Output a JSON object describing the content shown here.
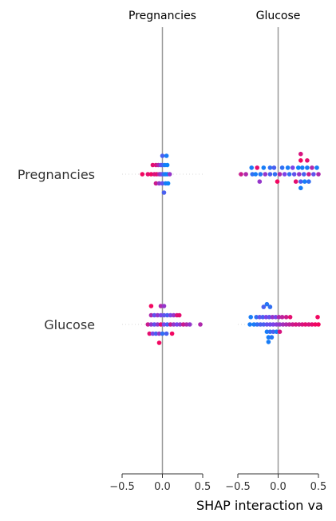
{
  "chart_data": {
    "type": "scatter",
    "title": "",
    "xlabel": "SHAP interaction va",
    "ylabel": "",
    "xlim": [
      -0.5,
      0.5
    ],
    "x_ticks": [
      -0.5,
      0.0,
      0.5
    ],
    "x_tick_labels": [
      "−0.5",
      "0.0",
      "0.5"
    ],
    "columns": [
      "Pregnancies",
      "Glucose"
    ],
    "rows": [
      "Pregnancies",
      "Glucose"
    ],
    "color_scale": {
      "low": "#008bfb",
      "high": "#ff0052"
    },
    "panels": [
      {
        "column": "Pregnancies",
        "row": "Pregnancies",
        "points": [
          {
            "x": 0.0,
            "lvl": -2,
            "c": 0.3
          },
          {
            "x": 0.05,
            "lvl": -2,
            "c": 0.1
          },
          {
            "x": -0.12,
            "lvl": -1,
            "c": 0.9
          },
          {
            "x": -0.08,
            "lvl": -1,
            "c": 0.85
          },
          {
            "x": -0.05,
            "lvl": -1,
            "c": 0.7
          },
          {
            "x": -0.02,
            "lvl": -1,
            "c": 0.5
          },
          {
            "x": 0.0,
            "lvl": -1,
            "c": 0.3
          },
          {
            "x": 0.03,
            "lvl": -1,
            "c": 0.1
          },
          {
            "x": 0.06,
            "lvl": -1,
            "c": 0.05
          },
          {
            "x": -0.25,
            "lvl": 0,
            "c": 0.95
          },
          {
            "x": -0.18,
            "lvl": 0,
            "c": 0.9
          },
          {
            "x": -0.14,
            "lvl": 0,
            "c": 0.95
          },
          {
            "x": -0.1,
            "lvl": 0,
            "c": 0.85
          },
          {
            "x": -0.07,
            "lvl": 0,
            "c": 0.9
          },
          {
            "x": -0.04,
            "lvl": 0,
            "c": 0.7
          },
          {
            "x": -0.02,
            "lvl": 0,
            "c": 0.6
          },
          {
            "x": 0.0,
            "lvl": 0,
            "c": 0.4
          },
          {
            "x": 0.02,
            "lvl": 0,
            "c": 0.2
          },
          {
            "x": 0.04,
            "lvl": 0,
            "c": 0.1
          },
          {
            "x": 0.06,
            "lvl": 0,
            "c": 0.05
          },
          {
            "x": 0.09,
            "lvl": 0,
            "c": 0.6
          },
          {
            "x": -0.08,
            "lvl": 1,
            "c": 0.8
          },
          {
            "x": -0.04,
            "lvl": 1,
            "c": 0.6
          },
          {
            "x": 0.0,
            "lvl": 1,
            "c": 0.4
          },
          {
            "x": 0.04,
            "lvl": 1,
            "c": 0.1
          },
          {
            "x": 0.07,
            "lvl": 1,
            "c": 0.05
          },
          {
            "x": 0.02,
            "lvl": 2,
            "c": 0.3
          }
        ]
      },
      {
        "column": "Glucose",
        "row": "Pregnancies",
        "points": [
          {
            "x": 0.28,
            "lvl": -2.2,
            "c": 0.85
          },
          {
            "x": 0.28,
            "lvl": -1.5,
            "c": 0.95
          },
          {
            "x": 0.36,
            "lvl": -1.5,
            "c": 0.9
          },
          {
            "x": -0.33,
            "lvl": -0.7,
            "c": 0.1
          },
          {
            "x": -0.26,
            "lvl": -0.7,
            "c": 0.9
          },
          {
            "x": -0.18,
            "lvl": -0.7,
            "c": 0.1
          },
          {
            "x": -0.1,
            "lvl": -0.7,
            "c": 0.2
          },
          {
            "x": -0.05,
            "lvl": -0.7,
            "c": 0.3
          },
          {
            "x": 0.05,
            "lvl": -0.7,
            "c": 0.2
          },
          {
            "x": 0.12,
            "lvl": -0.7,
            "c": 0.1
          },
          {
            "x": 0.18,
            "lvl": -0.7,
            "c": 0.5
          },
          {
            "x": 0.25,
            "lvl": -0.7,
            "c": 0.05
          },
          {
            "x": 0.3,
            "lvl": -0.7,
            "c": 0.1
          },
          {
            "x": 0.36,
            "lvl": -0.7,
            "c": 0.1
          },
          {
            "x": 0.42,
            "lvl": -0.7,
            "c": 0.7
          },
          {
            "x": 0.48,
            "lvl": -0.7,
            "c": 0.1
          },
          {
            "x": -0.46,
            "lvl": 0,
            "c": 0.8
          },
          {
            "x": -0.4,
            "lvl": 0,
            "c": 0.7
          },
          {
            "x": -0.32,
            "lvl": 0,
            "c": 0.2
          },
          {
            "x": -0.28,
            "lvl": 0,
            "c": 0.1
          },
          {
            "x": -0.22,
            "lvl": 0,
            "c": 0.15
          },
          {
            "x": -0.16,
            "lvl": 0,
            "c": 0.6
          },
          {
            "x": -0.1,
            "lvl": 0,
            "c": 0.3
          },
          {
            "x": -0.04,
            "lvl": 0,
            "c": 0.2
          },
          {
            "x": 0.02,
            "lvl": 0,
            "c": 0.7
          },
          {
            "x": 0.08,
            "lvl": 0,
            "c": 0.5
          },
          {
            "x": 0.14,
            "lvl": 0,
            "c": 0.2
          },
          {
            "x": 0.2,
            "lvl": 0,
            "c": 0.4
          },
          {
            "x": 0.26,
            "lvl": 0,
            "c": 0.6
          },
          {
            "x": 0.32,
            "lvl": 0,
            "c": 0.3
          },
          {
            "x": 0.38,
            "lvl": 0,
            "c": 0.8
          },
          {
            "x": 0.44,
            "lvl": 0,
            "c": 0.4
          },
          {
            "x": 0.5,
            "lvl": 0,
            "c": 0.7
          },
          {
            "x": -0.23,
            "lvl": 0.8,
            "c": 0.6
          },
          {
            "x": -0.01,
            "lvl": 0.8,
            "c": 0.95
          },
          {
            "x": 0.22,
            "lvl": 0.8,
            "c": 0.9
          },
          {
            "x": 0.28,
            "lvl": 0.8,
            "c": 0.3
          },
          {
            "x": 0.33,
            "lvl": 0.8,
            "c": 0.1
          },
          {
            "x": 0.38,
            "lvl": 0.8,
            "c": 0.2
          },
          {
            "x": 0.28,
            "lvl": 1.5,
            "c": 0.1
          }
        ]
      },
      {
        "column": "Pregnancies",
        "row": "Glucose",
        "points": [
          {
            "x": -0.14,
            "lvl": -2,
            "c": 0.95
          },
          {
            "x": -0.02,
            "lvl": -2,
            "c": 0.7
          },
          {
            "x": 0.02,
            "lvl": -2,
            "c": 0.6
          },
          {
            "x": -0.14,
            "lvl": -1,
            "c": 0.7
          },
          {
            "x": -0.1,
            "lvl": -1,
            "c": 0.4
          },
          {
            "x": -0.06,
            "lvl": -1,
            "c": 0.6
          },
          {
            "x": -0.02,
            "lvl": -1,
            "c": 0.5
          },
          {
            "x": 0.02,
            "lvl": -1,
            "c": 0.4
          },
          {
            "x": 0.06,
            "lvl": -1,
            "c": 0.3
          },
          {
            "x": 0.1,
            "lvl": -1,
            "c": 0.5
          },
          {
            "x": 0.14,
            "lvl": -1,
            "c": 0.6
          },
          {
            "x": 0.18,
            "lvl": -1,
            "c": 0.85
          },
          {
            "x": 0.21,
            "lvl": -1,
            "c": 0.9
          },
          {
            "x": -0.18,
            "lvl": 0,
            "c": 0.8
          },
          {
            "x": -0.14,
            "lvl": 0,
            "c": 0.6
          },
          {
            "x": -0.1,
            "lvl": 0,
            "c": 0.4
          },
          {
            "x": -0.06,
            "lvl": 0,
            "c": 0.6
          },
          {
            "x": -0.02,
            "lvl": 0,
            "c": 0.9
          },
          {
            "x": 0.02,
            "lvl": 0,
            "c": 0.5
          },
          {
            "x": 0.06,
            "lvl": 0,
            "c": 0.3
          },
          {
            "x": 0.1,
            "lvl": 0,
            "c": 0.8
          },
          {
            "x": 0.14,
            "lvl": 0,
            "c": 0.6
          },
          {
            "x": 0.18,
            "lvl": 0,
            "c": 0.5
          },
          {
            "x": 0.22,
            "lvl": 0,
            "c": 0.6
          },
          {
            "x": 0.26,
            "lvl": 0,
            "c": 0.8
          },
          {
            "x": 0.3,
            "lvl": 0,
            "c": 0.7
          },
          {
            "x": 0.34,
            "lvl": 0,
            "c": 0.6
          },
          {
            "x": 0.47,
            "lvl": 0,
            "c": 0.7
          },
          {
            "x": -0.16,
            "lvl": 1,
            "c": 0.9
          },
          {
            "x": -0.12,
            "lvl": 1,
            "c": 0.5
          },
          {
            "x": -0.08,
            "lvl": 1,
            "c": 0.3
          },
          {
            "x": -0.04,
            "lvl": 1,
            "c": 0.6
          },
          {
            "x": 0.0,
            "lvl": 1,
            "c": 0.2
          },
          {
            "x": 0.05,
            "lvl": 1,
            "c": 0.3
          },
          {
            "x": 0.12,
            "lvl": 1,
            "c": 0.95
          },
          {
            "x": -0.04,
            "lvl": 2,
            "c": 0.95
          }
        ]
      },
      {
        "column": "Glucose",
        "row": "Glucose",
        "points": [
          {
            "x": -0.14,
            "lvl": -2.2,
            "c": 0.15
          },
          {
            "x": -0.18,
            "lvl": -1.9,
            "c": 0.3
          },
          {
            "x": -0.1,
            "lvl": -1.9,
            "c": 0.2
          },
          {
            "x": -0.34,
            "lvl": -0.8,
            "c": 0.1
          },
          {
            "x": -0.27,
            "lvl": -0.8,
            "c": 0.2
          },
          {
            "x": -0.23,
            "lvl": -0.8,
            "c": 0.4
          },
          {
            "x": -0.19,
            "lvl": -0.8,
            "c": 0.3
          },
          {
            "x": -0.15,
            "lvl": -0.8,
            "c": 0.5
          },
          {
            "x": -0.11,
            "lvl": -0.8,
            "c": 0.4
          },
          {
            "x": -0.07,
            "lvl": -0.8,
            "c": 0.6
          },
          {
            "x": -0.03,
            "lvl": -0.8,
            "c": 0.5
          },
          {
            "x": 0.01,
            "lvl": -0.8,
            "c": 0.7
          },
          {
            "x": 0.05,
            "lvl": -0.8,
            "c": 0.75
          },
          {
            "x": 0.1,
            "lvl": -0.8,
            "c": 0.8
          },
          {
            "x": 0.15,
            "lvl": -0.8,
            "c": 0.9
          },
          {
            "x": 0.49,
            "lvl": -0.8,
            "c": 0.95
          },
          {
            "x": -0.35,
            "lvl": 0,
            "c": 0.1
          },
          {
            "x": -0.3,
            "lvl": 0,
            "c": 0.1
          },
          {
            "x": -0.26,
            "lvl": 0,
            "c": 0.2
          },
          {
            "x": -0.22,
            "lvl": 0,
            "c": 0.3
          },
          {
            "x": -0.18,
            "lvl": 0,
            "c": 0.3
          },
          {
            "x": -0.14,
            "lvl": 0,
            "c": 0.4
          },
          {
            "x": -0.1,
            "lvl": 0,
            "c": 0.45
          },
          {
            "x": -0.06,
            "lvl": 0,
            "c": 0.5
          },
          {
            "x": -0.02,
            "lvl": 0,
            "c": 0.55
          },
          {
            "x": 0.02,
            "lvl": 0,
            "c": 0.6
          },
          {
            "x": 0.06,
            "lvl": 0,
            "c": 0.65
          },
          {
            "x": 0.1,
            "lvl": 0,
            "c": 0.7
          },
          {
            "x": 0.14,
            "lvl": 0,
            "c": 0.75
          },
          {
            "x": 0.18,
            "lvl": 0,
            "c": 0.8
          },
          {
            "x": 0.22,
            "lvl": 0,
            "c": 0.85
          },
          {
            "x": 0.26,
            "lvl": 0,
            "c": 0.8
          },
          {
            "x": 0.3,
            "lvl": 0,
            "c": 0.85
          },
          {
            "x": 0.34,
            "lvl": 0,
            "c": 0.9
          },
          {
            "x": 0.38,
            "lvl": 0,
            "c": 0.85
          },
          {
            "x": 0.42,
            "lvl": 0,
            "c": 0.9
          },
          {
            "x": 0.46,
            "lvl": 0,
            "c": 0.95
          },
          {
            "x": 0.5,
            "lvl": 0,
            "c": 0.95
          },
          {
            "x": -0.14,
            "lvl": 0.8,
            "c": 0.1
          },
          {
            "x": -0.1,
            "lvl": 0.8,
            "c": 0.2
          },
          {
            "x": -0.06,
            "lvl": 0.8,
            "c": 0.3
          },
          {
            "x": -0.02,
            "lvl": 0.8,
            "c": 0.1
          },
          {
            "x": 0.02,
            "lvl": 0.8,
            "c": 0.85
          },
          {
            "x": -0.12,
            "lvl": 1.4,
            "c": 0.1
          },
          {
            "x": -0.08,
            "lvl": 1.4,
            "c": 0.15
          },
          {
            "x": -0.12,
            "lvl": 1.9,
            "c": 0.1
          }
        ]
      }
    ]
  }
}
